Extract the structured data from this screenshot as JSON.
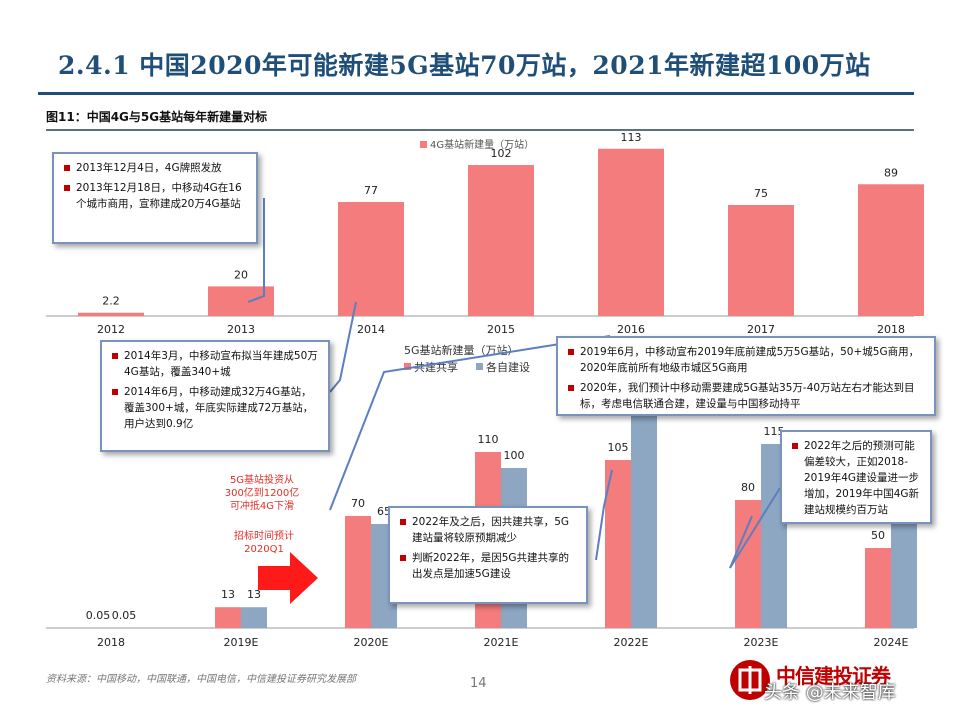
{
  "header": {
    "title": "2.4.1 中国2020年可能新建5G基站70万站，2021年新建超100万站",
    "figure_caption": "图11：中国4G与5G基站每年新建量对标"
  },
  "colors": {
    "pink": "#f47c7c",
    "steel": "#8da6c2",
    "accent": "#c00000",
    "title": "#1f4e79"
  },
  "chart_data": [
    {
      "type": "bar",
      "categories": [
        "2012",
        "2013",
        "2014",
        "2015",
        "2016",
        "2017",
        "2018"
      ],
      "series": [
        {
          "name": "4G基站新建量（万站）",
          "values": [
            2.2,
            20,
            77,
            102,
            113,
            75,
            89
          ]
        }
      ],
      "value_labels": [
        "2.2",
        "20",
        "77",
        "102",
        "113",
        "75",
        "89"
      ],
      "ylim": [
        0,
        120
      ],
      "legend": "top-center"
    },
    {
      "type": "bar",
      "title": "5G基站新建量（万站）",
      "categories": [
        "2018",
        "2019E",
        "2020E",
        "2021E",
        "2022E",
        "2023E",
        "2024E"
      ],
      "series": [
        {
          "name": "共建共享",
          "values": [
            0.05,
            13,
            70,
            110,
            105,
            80,
            50
          ]
        },
        {
          "name": "各自建设",
          "values": [
            0.05,
            13,
            65,
            100,
            150,
            115,
            100
          ]
        }
      ],
      "value_labels": [
        [
          "0.05",
          "13",
          "70",
          "110",
          "105",
          "80",
          "50"
        ],
        [
          "0.05",
          "13",
          "65",
          "100",
          "",
          "115",
          ""
        ]
      ],
      "legend": "top-left"
    }
  ],
  "notes": {
    "n2013": [
      "2013年12月4日，4G牌照发放",
      "2013年12月18日，中移动4G在16个城市商用，宣称建成20万4G基站"
    ],
    "n2014": [
      "2014年3月，中移动宣布拟当年建成50万4G基站，覆盖340+城",
      "2014年6月，中移动建成32万4G基站，覆盖300+城，年底实际建成72万基站，用户达到0.9亿"
    ],
    "n2019": [
      "2019年6月，中移动宣布2019年底前建成5万5G基站，50+城5G商用，2020年底前所有地级市城区5G商用",
      "2020年，我们预计中移动需要建成5G基站35万-40万站左右才能达到目标，考虑电信联通合建，建设量与中国移动持平"
    ],
    "n2022": [
      "2022年及之后，因共建共享，5G建站量将较原预期减少",
      "判断2022年，是因5G共建共享的出发点是加速5G建设"
    ],
    "n2023": [
      "2022年之后的预测可能偏差较大，正如2018-2019年4G建设量进一步增加，2019年中国4G新建站规模约百万站"
    ]
  },
  "annotations": {
    "invest": "5G基站投资从300亿到1200亿可冲抵4G下滑",
    "bid": "招标时间预计2020Q1"
  },
  "footer": {
    "source": "资料来源：中国移动，中国联通，中国电信，中信建投证券研究发展部",
    "page_number": "14",
    "brand": "中信建投证券",
    "watermark": "头条 @未来智库"
  }
}
